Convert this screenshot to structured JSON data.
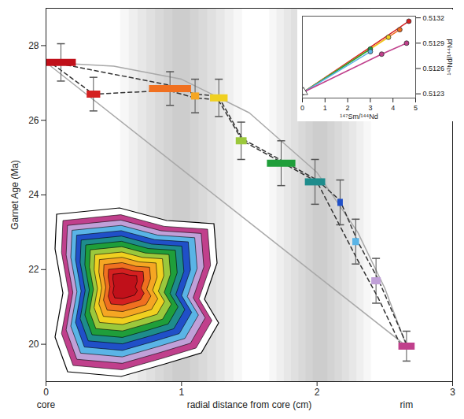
{
  "chart_data": [
    {
      "type": "scatter",
      "xlabel": "radial distance from core (cm)",
      "ylabel": "Garnet Age (Ma)",
      "xlim": [
        0,
        3
      ],
      "xticks": [
        0,
        1,
        2,
        3
      ],
      "ylim": [
        19,
        29
      ],
      "yticks": [
        20,
        22,
        24,
        26,
        28
      ],
      "annotations": [
        {
          "text": "core",
          "x": 0
        },
        {
          "text": "rim",
          "x": 2.66
        }
      ],
      "shaded_bands": [
        [
          0.55,
          1.45
        ],
        [
          1.65,
          2.4
        ]
      ],
      "series": [
        {
          "type": "line",
          "color": "#a8a8a8",
          "line_style": "solid",
          "x": [
            0,
            0.5,
            1.0,
            1.5,
            2.0,
            2.3,
            2.5,
            2.66
          ],
          "values": [
            27.55,
            27.45,
            27.1,
            26.2,
            24.6,
            23.0,
            21.5,
            19.95
          ]
        },
        {
          "type": "line",
          "color": "#a8a8a8",
          "line_style": "solid",
          "x": [
            0,
            2.66
          ],
          "values": [
            27.55,
            19.95
          ]
        },
        {
          "type": "line",
          "color": "#333333",
          "line_style": "dashed",
          "x": [
            0.05,
            0.9,
            1.1,
            1.27,
            1.45,
            1.75,
            2.0,
            2.17,
            2.3,
            2.45,
            2.66
          ],
          "values": [
            27.55,
            26.95,
            26.7,
            26.65,
            25.5,
            24.9,
            24.4,
            23.85,
            22.75,
            21.75,
            20.0
          ]
        },
        {
          "type": "line",
          "color": "#333333",
          "line_style": "dashed",
          "x": [
            0.05,
            0.35,
            0.9,
            1.1,
            1.27,
            1.45,
            1.75,
            2.0,
            2.15,
            2.3,
            2.45,
            2.62
          ],
          "values": [
            27.5,
            26.7,
            26.8,
            26.6,
            26.55,
            25.45,
            24.85,
            24.35,
            23.3,
            22.25,
            21.25,
            19.95
          ]
        },
        {
          "type": "scatter",
          "marker": "bar",
          "x_start": [
            0.0,
            0.3,
            0.76,
            1.07,
            1.21,
            1.4,
            1.63,
            1.91,
            2.15,
            2.26,
            2.4,
            2.6
          ],
          "x_end": [
            0.22,
            0.4,
            1.07,
            1.13,
            1.34,
            1.48,
            1.84,
            2.06,
            2.19,
            2.31,
            2.47,
            2.72
          ],
          "values": [
            27.55,
            26.7,
            26.85,
            26.65,
            26.6,
            25.45,
            24.85,
            24.35,
            23.8,
            22.75,
            21.7,
            19.95
          ],
          "errors": [
            0.5,
            0.45,
            0.45,
            0.45,
            0.5,
            0.5,
            0.6,
            0.6,
            0.6,
            0.6,
            0.6,
            0.4
          ],
          "colors": [
            "#c0101a",
            "#d42020",
            "#f07020",
            "#f5a623",
            "#f0d020",
            "#9bc83c",
            "#1f9e3a",
            "#1e8c8c",
            "#2050c8",
            "#5ab4e6",
            "#c0a0d8",
            "#c0408c"
          ]
        }
      ]
    },
    {
      "type": "line",
      "xlabel": "¹⁴⁷Sm/¹⁴⁴Nd",
      "ylabel": "¹⁴³Nd/¹⁴⁴Nd",
      "xlim": [
        0,
        5
      ],
      "xticks": [
        0,
        1,
        2,
        3,
        4,
        5
      ],
      "ylim": [
        0.51225,
        0.51322
      ],
      "yticks": [
        0.5123,
        0.5126,
        0.5129,
        0.5132
      ],
      "series": [
        {
          "color": "#d42020",
          "line_style": "solid",
          "marker": "circle",
          "x": [
            0.05,
            4.7
          ],
          "values": [
            0.51232,
            0.51316
          ]
        },
        {
          "color": "#f07020",
          "line_style": "solid",
          "marker": "circle",
          "x": [
            0.05,
            4.3
          ],
          "values": [
            0.51232,
            0.51306
          ]
        },
        {
          "color": "#f0d020",
          "line_style": "solid",
          "marker": "circle",
          "x": [
            0.05,
            3.8
          ],
          "values": [
            0.51232,
            0.51297
          ]
        },
        {
          "color": "#1f9e3a",
          "line_style": "solid",
          "marker": "circle",
          "x": [
            0.05,
            3.0
          ],
          "values": [
            0.51232,
            0.51283
          ]
        },
        {
          "color": "#5ab4e6",
          "line_style": "solid",
          "marker": "circle",
          "x": [
            0.05,
            3.0
          ],
          "values": [
            0.51232,
            0.5128
          ]
        },
        {
          "color": "#c0408c",
          "line_style": "solid",
          "marker": "circle",
          "x": [
            0.05,
            3.5,
            4.6
          ],
          "values": [
            0.51232,
            0.51277,
            0.5129
          ]
        },
        {
          "color": "#888888",
          "marker": "triangle",
          "x": [
            0.05
          ],
          "values": [
            0.51232
          ]
        }
      ]
    }
  ]
}
